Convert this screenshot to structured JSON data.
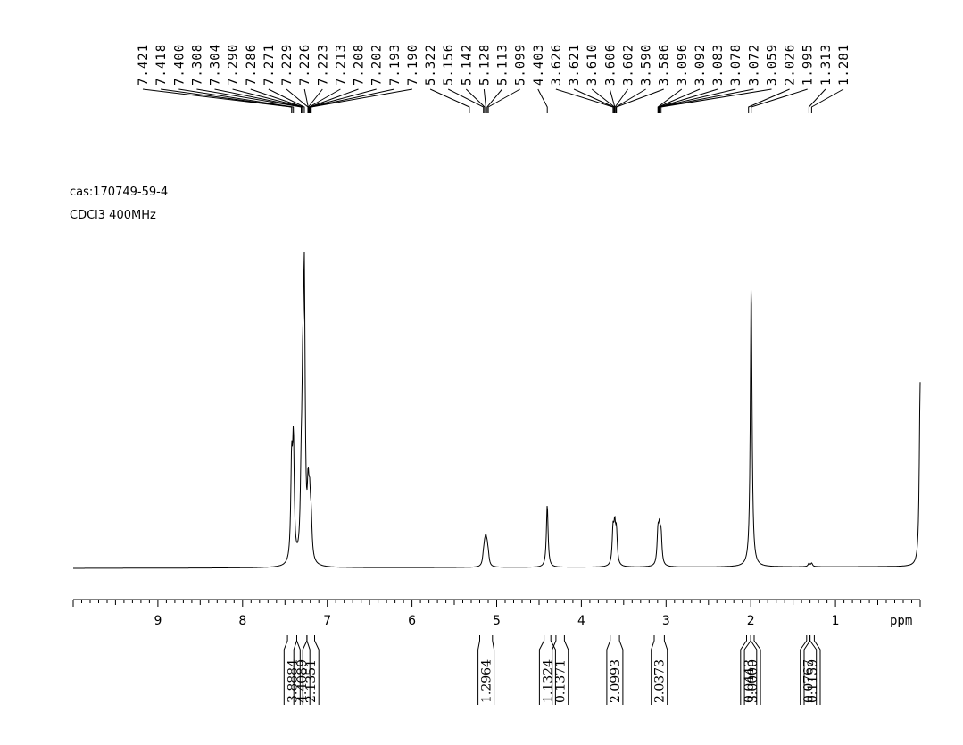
{
  "header": {
    "cas_label": "cas:170749-59-4",
    "conditions": "CDCl3  400MHz"
  },
  "chart_data": {
    "type": "line",
    "xlabel": "ppm",
    "xlim": [
      10.0,
      -0.03
    ],
    "x_reversed": true,
    "x_ticks": [
      "9",
      "8",
      "7",
      "6",
      "5",
      "4",
      "3",
      "2",
      "1"
    ],
    "x_tick_values": [
      9,
      8,
      7,
      6,
      5,
      4,
      3,
      2,
      1
    ],
    "peak_labels": [
      "7.421",
      "7.418",
      "7.400",
      "7.308",
      "7.304",
      "7.290",
      "7.286",
      "7.271",
      "7.229",
      "7.226",
      "7.223",
      "7.213",
      "7.208",
      "7.202",
      "7.193",
      "7.190",
      "5.322",
      "5.156",
      "5.142",
      "5.128",
      "5.113",
      "5.099",
      "4.403",
      "3.626",
      "3.621",
      "3.610",
      "3.606",
      "3.602",
      "3.590",
      "3.586",
      "3.096",
      "3.092",
      "3.083",
      "3.078",
      "3.072",
      "3.059",
      "2.026",
      "1.995",
      "1.313",
      "1.281"
    ],
    "peak_anchor_ppm": [
      7.421,
      7.418,
      7.4,
      7.308,
      7.304,
      7.29,
      7.286,
      7.271,
      7.229,
      7.226,
      7.223,
      7.213,
      7.208,
      7.202,
      7.193,
      7.19,
      5.322,
      5.156,
      5.142,
      5.128,
      5.113,
      5.099,
      4.403,
      3.626,
      3.621,
      3.61,
      3.606,
      3.602,
      3.59,
      3.586,
      3.096,
      3.092,
      3.083,
      3.078,
      3.072,
      3.059,
      2.026,
      1.995,
      1.313,
      1.281
    ],
    "spectrum_peaks": [
      {
        "ppm": 7.421,
        "height": 0.33
      },
      {
        "ppm": 7.4,
        "height": 0.4
      },
      {
        "ppm": 7.308,
        "height": 0.22
      },
      {
        "ppm": 7.29,
        "height": 0.48
      },
      {
        "ppm": 7.271,
        "height": 0.93
      },
      {
        "ppm": 7.226,
        "height": 0.21
      },
      {
        "ppm": 7.208,
        "height": 0.17
      },
      {
        "ppm": 7.19,
        "height": 0.12
      },
      {
        "ppm": 5.156,
        "height": 0.03
      },
      {
        "ppm": 5.142,
        "height": 0.05
      },
      {
        "ppm": 5.128,
        "height": 0.07
      },
      {
        "ppm": 5.113,
        "height": 0.05
      },
      {
        "ppm": 5.099,
        "height": 0.03
      },
      {
        "ppm": 4.403,
        "height": 0.22
      },
      {
        "ppm": 3.626,
        "height": 0.12
      },
      {
        "ppm": 3.606,
        "height": 0.12
      },
      {
        "ppm": 3.586,
        "height": 0.11
      },
      {
        "ppm": 3.096,
        "height": 0.11
      },
      {
        "ppm": 3.078,
        "height": 0.11
      },
      {
        "ppm": 3.059,
        "height": 0.1
      },
      {
        "ppm": 1.995,
        "height": 1.0
      },
      {
        "ppm": 1.313,
        "height": 0.012
      },
      {
        "ppm": 1.281,
        "height": 0.012
      },
      {
        "ppm": 0.0,
        "height": 0.65
      }
    ],
    "integrals": [
      {
        "label": "3.8884",
        "from_ppm": 7.47,
        "to_ppm": 7.36
      },
      {
        "label": "4.4089",
        "from_ppm": 7.36,
        "to_ppm": 7.24
      },
      {
        "label": "2.1351",
        "from_ppm": 7.24,
        "to_ppm": 7.15
      },
      {
        "label": "1.2964",
        "from_ppm": 5.2,
        "to_ppm": 5.05
      },
      {
        "label": "1.1324",
        "from_ppm": 4.44,
        "to_ppm": 4.36
      },
      {
        "label": "0.1371",
        "from_ppm": 4.3,
        "to_ppm": 4.2
      },
      {
        "label": "2.0993",
        "from_ppm": 3.66,
        "to_ppm": 3.55
      },
      {
        "label": "2.0373",
        "from_ppm": 3.14,
        "to_ppm": 3.02
      },
      {
        "label": "0.0443",
        "from_ppm": 2.05,
        "to_ppm": 2.0
      },
      {
        "label": "3.0000",
        "from_ppm": 2.0,
        "to_ppm": 1.96
      },
      {
        "label": "0.0767",
        "from_ppm": 1.34,
        "to_ppm": 1.3
      },
      {
        "label": "0.1159",
        "from_ppm": 1.3,
        "to_ppm": 1.25
      }
    ]
  }
}
